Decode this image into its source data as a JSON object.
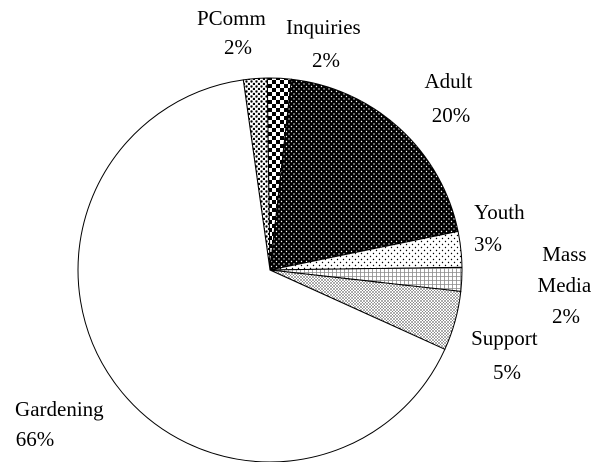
{
  "chart_data": {
    "type": "pie",
    "title": "",
    "slices": [
      {
        "name": "PComm",
        "value": 2,
        "value_label": "2%",
        "pattern": "dots-dense"
      },
      {
        "name": "Inquiries",
        "value": 2,
        "value_label": "2%",
        "pattern": "checker"
      },
      {
        "name": "Adult",
        "value": 20,
        "value_label": "20%",
        "pattern": "dots-dark"
      },
      {
        "name": "Youth",
        "value": 3,
        "value_label": "3%",
        "pattern": "dots-light"
      },
      {
        "name": "Mass Media",
        "value": 2,
        "value_label": "2%",
        "pattern": "grid"
      },
      {
        "name": "Support",
        "value": 5,
        "value_label": "5%",
        "pattern": "stipple"
      },
      {
        "name": "Gardening",
        "value": 66,
        "value_label": "66%",
        "pattern": "none"
      }
    ],
    "start_angle_deg": -8,
    "direction": "clockwise",
    "legend": "none"
  }
}
